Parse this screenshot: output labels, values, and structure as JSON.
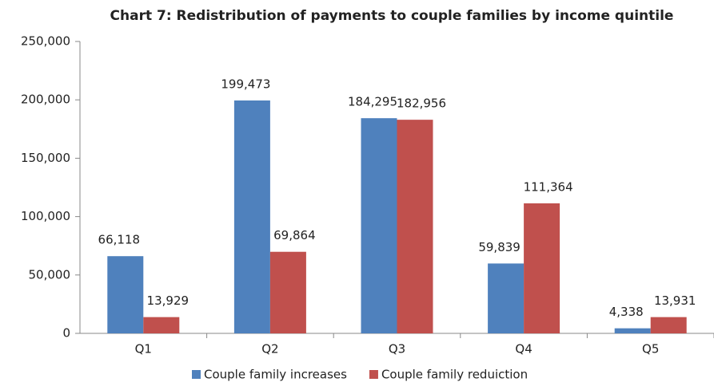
{
  "chart_data": {
    "type": "bar",
    "title": "Chart 7: Redistribution of payments to couple families by income quintile",
    "categories": [
      "Q1",
      "Q2",
      "Q3",
      "Q4",
      "Q5"
    ],
    "series": [
      {
        "name": "Couple family increases",
        "color": "#4f81bd",
        "values": [
          66118,
          199473,
          184295,
          59839,
          4338
        ],
        "value_labels": [
          "66,118",
          "199,473",
          "184,295",
          "59,839",
          "4,338"
        ]
      },
      {
        "name": "Couple family reduiction",
        "color": "#c0504d",
        "values": [
          13929,
          69864,
          182956,
          111364,
          13931
        ],
        "value_labels": [
          "13,929",
          "69,864",
          "182,956",
          "111,364",
          "13,931"
        ]
      }
    ],
    "ylim": [
      0,
      250000
    ],
    "yticks": [
      0,
      {
        "value": 50000,
        "label": "50,000"
      },
      {
        "value": 100000,
        "label": "100,000"
      },
      {
        "value": 150000,
        "label": "150,000"
      },
      {
        "value": 200000,
        "label": "200,000"
      },
      {
        "value": 250000,
        "label": "250,000"
      }
    ],
    "grid": false,
    "legend": "bottom"
  }
}
